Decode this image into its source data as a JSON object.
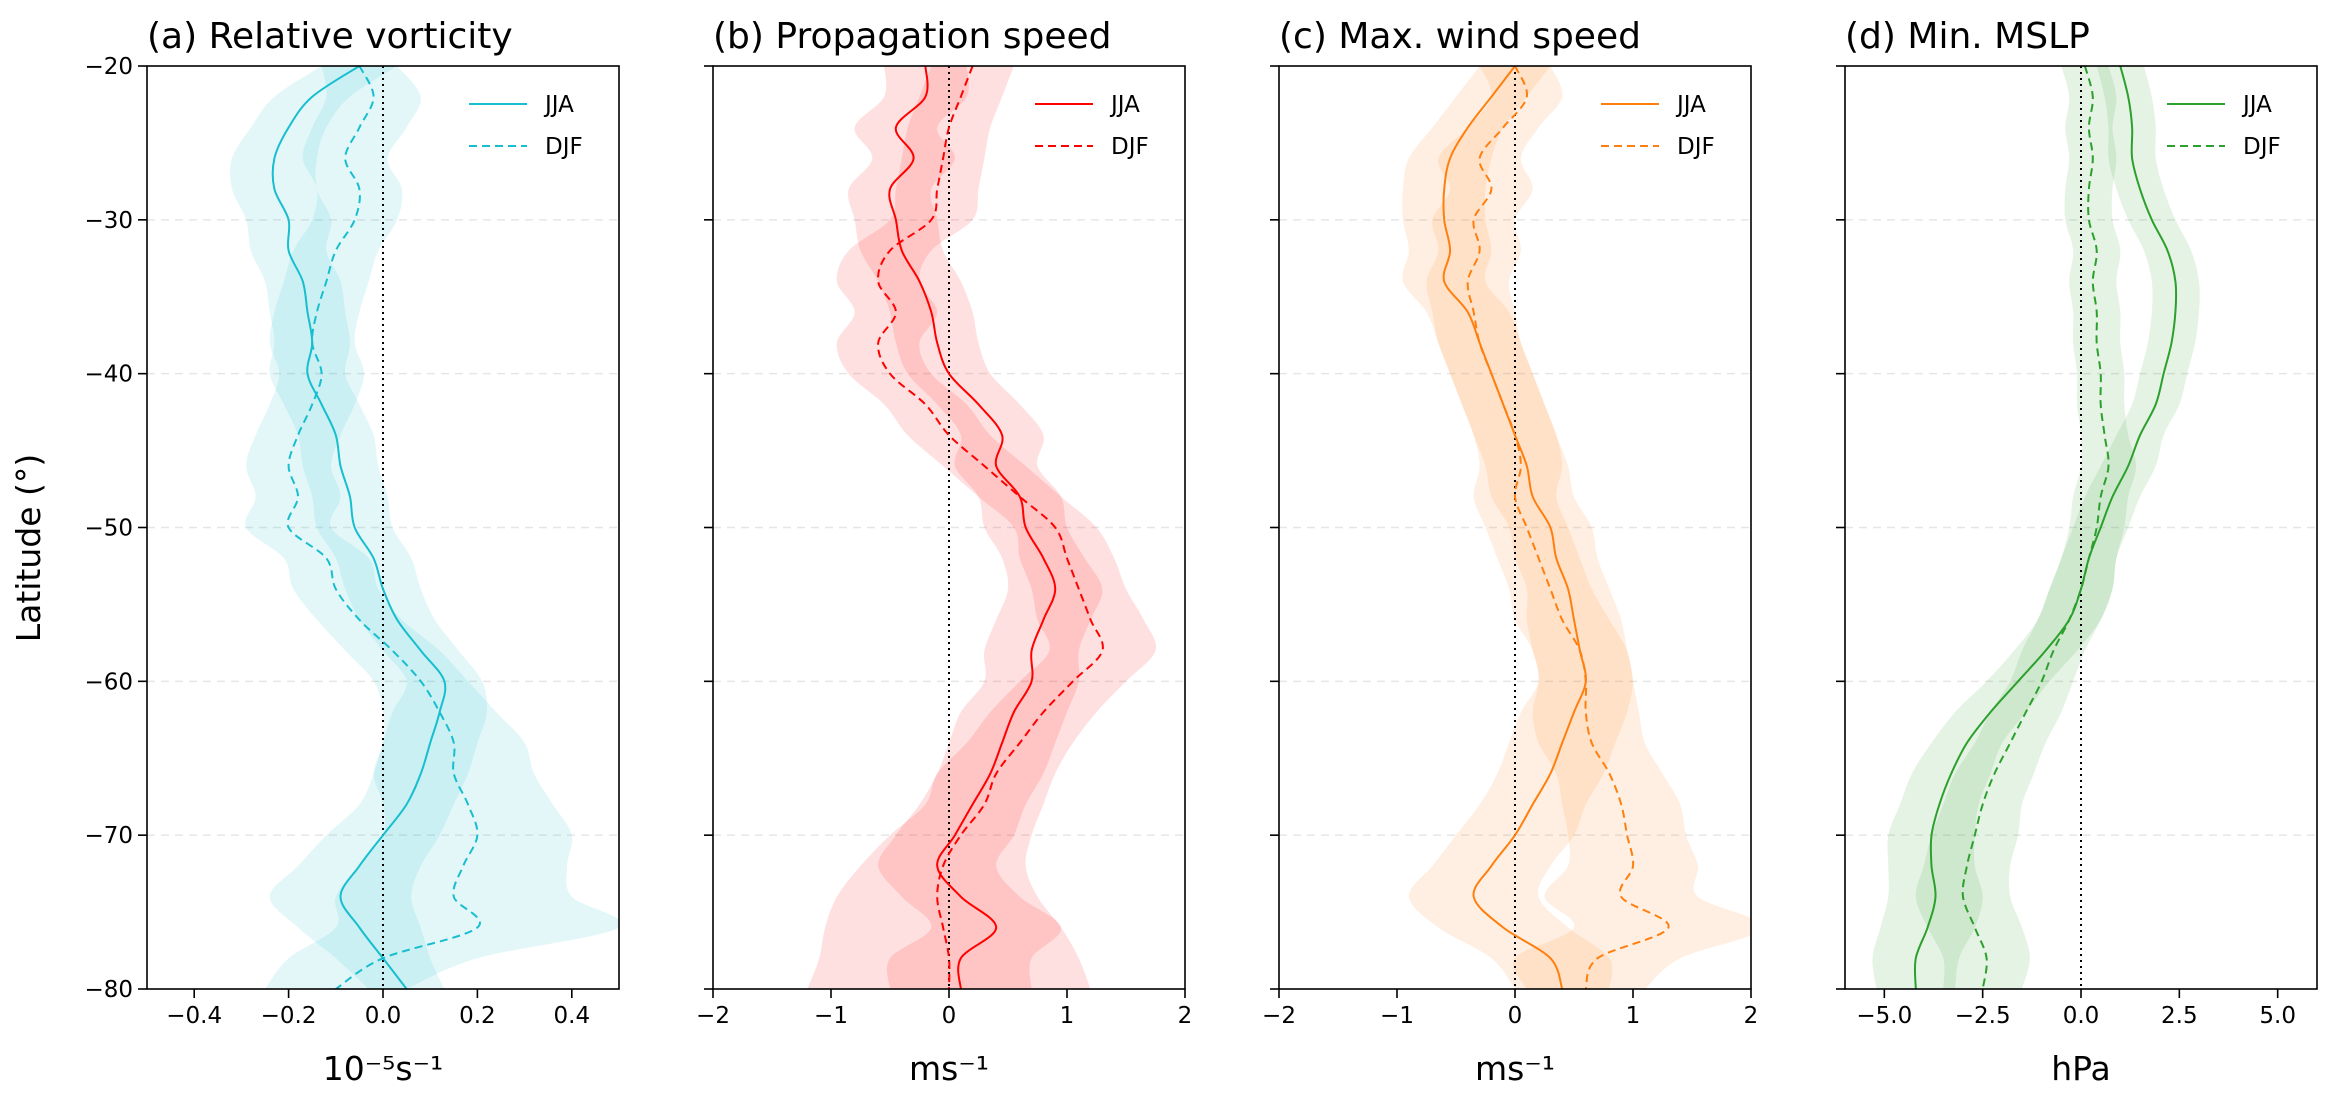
{
  "figure": {
    "ylabel": "Latitude (°)"
  },
  "chart_data": [
    {
      "type": "line",
      "title": "(a) Relative vorticity",
      "xlabel": "10⁻⁵s⁻¹",
      "ylabel": "Latitude (°)",
      "xlim": [
        -0.5,
        0.5
      ],
      "ylim": [
        -80,
        -20
      ],
      "xticks": [
        -0.4,
        -0.2,
        0.0,
        0.2,
        0.4
      ],
      "xtick_labels": [
        "−0.4",
        "−0.2",
        "0.0",
        "0.2",
        "0.4"
      ],
      "yticks": [
        -80,
        -70,
        -60,
        -50,
        -40,
        -30,
        -20
      ],
      "ytick_labels": [
        "−80",
        "−70",
        "−60",
        "−50",
        "−40",
        "−30",
        "−20"
      ],
      "color": "#17becf",
      "grid": "horizontal dashed",
      "zero_line": "vertical dotted at x=0",
      "legend": "top-right",
      "series": [
        {
          "name": "JJA",
          "style": "solid",
          "lat": [
            -20,
            -22,
            -24,
            -26,
            -28,
            -30,
            -32,
            -34,
            -36,
            -38,
            -40,
            -42,
            -44,
            -46,
            -48,
            -50,
            -52,
            -54,
            -56,
            -58,
            -60,
            -62,
            -64,
            -66,
            -68,
            -70,
            -72,
            -74,
            -76,
            -78,
            -80
          ],
          "x": [
            -0.05,
            -0.15,
            -0.2,
            -0.23,
            -0.23,
            -0.2,
            -0.2,
            -0.17,
            -0.16,
            -0.15,
            -0.16,
            -0.13,
            -0.1,
            -0.09,
            -0.07,
            -0.06,
            -0.02,
            0.0,
            0.03,
            0.08,
            0.13,
            0.12,
            0.1,
            0.08,
            0.05,
            0.0,
            -0.05,
            -0.09,
            -0.05,
            0.0,
            0.05
          ],
          "band": [
            0.08,
            0.08,
            0.08,
            0.09,
            0.09,
            0.09,
            0.08,
            0.08,
            0.08,
            0.08,
            0.08,
            0.08,
            0.08,
            0.08,
            0.08,
            0.08,
            0.08,
            0.08,
            0.08,
            0.08,
            0.08,
            0.1,
            0.1,
            0.1,
            0.1,
            0.12,
            0.13,
            0.15,
            0.13,
            0.1,
            0.08
          ]
        },
        {
          "name": "DJF",
          "style": "dashed",
          "lat": [
            -20,
            -22,
            -24,
            -26,
            -28,
            -30,
            -32,
            -34,
            -36,
            -38,
            -40,
            -42,
            -44,
            -46,
            -48,
            -50,
            -52,
            -54,
            -56,
            -58,
            -60,
            -62,
            -64,
            -66,
            -68,
            -70,
            -72,
            -74,
            -76,
            -78,
            -80
          ],
          "x": [
            -0.05,
            -0.02,
            -0.05,
            -0.08,
            -0.05,
            -0.06,
            -0.1,
            -0.12,
            -0.14,
            -0.15,
            -0.13,
            -0.15,
            -0.18,
            -0.2,
            -0.18,
            -0.2,
            -0.12,
            -0.1,
            -0.05,
            0.02,
            0.08,
            0.12,
            0.15,
            0.15,
            0.18,
            0.2,
            0.17,
            0.15,
            0.2,
            0.0,
            -0.1
          ],
          "band": [
            0.08,
            0.1,
            0.1,
            0.09,
            0.09,
            0.09,
            0.09,
            0.09,
            0.09,
            0.09,
            0.09,
            0.09,
            0.09,
            0.09,
            0.09,
            0.09,
            0.09,
            0.09,
            0.09,
            0.1,
            0.1,
            0.12,
            0.15,
            0.17,
            0.18,
            0.2,
            0.22,
            0.25,
            0.3,
            0.2,
            0.15
          ]
        }
      ]
    },
    {
      "type": "line",
      "title": "(b) Propagation speed",
      "xlabel": "ms⁻¹",
      "xlim": [
        -2,
        2
      ],
      "ylim": [
        -80,
        -20
      ],
      "xticks": [
        -2,
        -1,
        0,
        1,
        2
      ],
      "xtick_labels": [
        "−2",
        "−1",
        "0",
        "1",
        "2"
      ],
      "yticks": [
        -80,
        -70,
        -60,
        -50,
        -40,
        -30,
        -20
      ],
      "color": "#ff0000",
      "grid": "horizontal dashed",
      "zero_line": "vertical dotted at x=0",
      "legend": "top-right",
      "series": [
        {
          "name": "JJA",
          "style": "solid",
          "lat": [
            -20,
            -22,
            -24,
            -26,
            -28,
            -30,
            -32,
            -34,
            -36,
            -38,
            -40,
            -42,
            -44,
            -46,
            -48,
            -50,
            -52,
            -54,
            -56,
            -58,
            -60,
            -62,
            -64,
            -66,
            -68,
            -70,
            -72,
            -74,
            -76,
            -78,
            -80
          ],
          "x": [
            -0.2,
            -0.2,
            -0.45,
            -0.3,
            -0.5,
            -0.45,
            -0.4,
            -0.25,
            -0.15,
            -0.1,
            0.0,
            0.25,
            0.45,
            0.4,
            0.6,
            0.65,
            0.8,
            0.9,
            0.8,
            0.7,
            0.7,
            0.55,
            0.45,
            0.35,
            0.2,
            0.05,
            -0.1,
            0.1,
            0.4,
            0.1,
            0.1
          ],
          "band": [
            0.35,
            0.35,
            0.35,
            0.35,
            0.35,
            0.35,
            0.35,
            0.35,
            0.35,
            0.35,
            0.35,
            0.35,
            0.35,
            0.35,
            0.35,
            0.35,
            0.35,
            0.4,
            0.4,
            0.4,
            0.4,
            0.45,
            0.45,
            0.45,
            0.45,
            0.5,
            0.5,
            0.5,
            0.55,
            0.6,
            0.6
          ]
        },
        {
          "name": "DJF",
          "style": "dashed",
          "lat": [
            -20,
            -22,
            -24,
            -26,
            -28,
            -30,
            -32,
            -34,
            -36,
            -38,
            -40,
            -42,
            -44,
            -46,
            -48,
            -50,
            -52,
            -54,
            -56,
            -58,
            -60,
            -62,
            -64,
            -66,
            -68,
            -70,
            -72,
            -74,
            -76,
            -78,
            -80
          ],
          "x": [
            0.2,
            0.1,
            0.0,
            -0.05,
            -0.1,
            -0.15,
            -0.5,
            -0.6,
            -0.45,
            -0.6,
            -0.5,
            -0.2,
            0.0,
            0.3,
            0.6,
            0.9,
            1.0,
            1.1,
            1.2,
            1.3,
            1.05,
            0.8,
            0.6,
            0.4,
            0.3,
            0.1,
            -0.05,
            -0.1,
            -0.05,
            0.0,
            0.0
          ],
          "band": [
            0.35,
            0.35,
            0.35,
            0.35,
            0.35,
            0.35,
            0.35,
            0.35,
            0.35,
            0.35,
            0.35,
            0.35,
            0.35,
            0.35,
            0.35,
            0.35,
            0.4,
            0.4,
            0.45,
            0.45,
            0.45,
            0.45,
            0.45,
            0.5,
            0.5,
            0.6,
            0.7,
            0.85,
            1.0,
            1.1,
            1.2
          ]
        }
      ]
    },
    {
      "type": "line",
      "title": "(c) Max. wind speed",
      "xlabel": "ms⁻¹",
      "xlim": [
        -2,
        2
      ],
      "ylim": [
        -80,
        -20
      ],
      "xticks": [
        -2,
        -1,
        0,
        1,
        2
      ],
      "xtick_labels": [
        "−2",
        "−1",
        "0",
        "1",
        "2"
      ],
      "yticks": [
        -80,
        -70,
        -60,
        -50,
        -40,
        -30,
        -20
      ],
      "color": "#ff7f0e",
      "grid": "horizontal dashed",
      "zero_line": "vertical dotted at x=0",
      "legend": "top-right",
      "series": [
        {
          "name": "JJA",
          "style": "solid",
          "lat": [
            -20,
            -22,
            -24,
            -26,
            -28,
            -30,
            -32,
            -34,
            -36,
            -38,
            -40,
            -42,
            -44,
            -46,
            -48,
            -50,
            -52,
            -54,
            -56,
            -58,
            -60,
            -62,
            -64,
            -66,
            -68,
            -70,
            -72,
            -74,
            -76,
            -78,
            -80
          ],
          "x": [
            0.0,
            -0.2,
            -0.4,
            -0.55,
            -0.6,
            -0.6,
            -0.55,
            -0.6,
            -0.4,
            -0.3,
            -0.2,
            -0.1,
            0.0,
            0.1,
            0.15,
            0.3,
            0.35,
            0.45,
            0.5,
            0.55,
            0.6,
            0.5,
            0.4,
            0.3,
            0.15,
            0.0,
            -0.2,
            -0.35,
            -0.1,
            0.3,
            0.4
          ],
          "band": [
            0.3,
            0.3,
            0.3,
            0.35,
            0.35,
            0.35,
            0.35,
            0.35,
            0.35,
            0.35,
            0.35,
            0.35,
            0.35,
            0.35,
            0.35,
            0.35,
            0.35,
            0.35,
            0.4,
            0.4,
            0.4,
            0.45,
            0.45,
            0.45,
            0.45,
            0.5,
            0.5,
            0.55,
            0.55,
            0.5,
            0.4
          ]
        },
        {
          "name": "DJF",
          "style": "dashed",
          "lat": [
            -20,
            -22,
            -24,
            -26,
            -28,
            -30,
            -32,
            -34,
            -36,
            -38,
            -40,
            -42,
            -44,
            -46,
            -48,
            -50,
            -52,
            -54,
            -56,
            -58,
            -60,
            -62,
            -64,
            -66,
            -68,
            -70,
            -72,
            -74,
            -76,
            -78,
            -80
          ],
          "x": [
            0.0,
            0.1,
            -0.1,
            -0.3,
            -0.2,
            -0.35,
            -0.3,
            -0.4,
            -0.35,
            -0.3,
            -0.2,
            -0.1,
            0.0,
            0.05,
            0.0,
            0.1,
            0.2,
            0.3,
            0.4,
            0.55,
            0.6,
            0.6,
            0.65,
            0.8,
            0.9,
            0.95,
            1.0,
            0.9,
            1.3,
            0.7,
            0.6
          ],
          "band": [
            0.3,
            0.3,
            0.3,
            0.35,
            0.35,
            0.35,
            0.35,
            0.35,
            0.35,
            0.35,
            0.35,
            0.35,
            0.35,
            0.35,
            0.35,
            0.35,
            0.35,
            0.35,
            0.4,
            0.4,
            0.4,
            0.45,
            0.45,
            0.45,
            0.5,
            0.5,
            0.55,
            0.65,
            0.8,
            0.7,
            0.5
          ]
        }
      ]
    },
    {
      "type": "line",
      "title": "(d) Min. MSLP",
      "xlabel": "hPa",
      "xlim": [
        -6,
        6
      ],
      "ylim": [
        -80,
        -20
      ],
      "xticks": [
        -5,
        -2.5,
        0,
        2.5,
        5
      ],
      "xtick_labels": [
        "−5.0",
        "−2.5",
        "0.0",
        "2.5",
        "5.0"
      ],
      "yticks": [
        -80,
        -70,
        -60,
        -50,
        -40,
        -30,
        -20
      ],
      "color": "#2ca02c",
      "grid": "horizontal dashed",
      "zero_line": "vertical dotted at x=0",
      "legend": "top-right",
      "series": [
        {
          "name": "JJA",
          "style": "solid",
          "lat": [
            -20,
            -22,
            -24,
            -26,
            -28,
            -30,
            -32,
            -34,
            -36,
            -38,
            -40,
            -42,
            -44,
            -46,
            -48,
            -50,
            -52,
            -54,
            -56,
            -58,
            -60,
            -62,
            -64,
            -66,
            -68,
            -70,
            -72,
            -74,
            -76,
            -78,
            -80
          ],
          "x": [
            1.0,
            1.2,
            1.3,
            1.3,
            1.5,
            1.8,
            2.2,
            2.4,
            2.4,
            2.3,
            2.1,
            1.9,
            1.5,
            1.2,
            0.8,
            0.5,
            0.2,
            0.0,
            -0.3,
            -0.9,
            -1.6,
            -2.3,
            -2.9,
            -3.3,
            -3.6,
            -3.8,
            -3.8,
            -3.7,
            -3.9,
            -4.2,
            -4.2
          ],
          "band": [
            0.6,
            0.6,
            0.6,
            0.6,
            0.6,
            0.6,
            0.6,
            0.6,
            0.6,
            0.6,
            0.6,
            0.6,
            0.6,
            0.7,
            0.7,
            0.7,
            0.7,
            0.8,
            0.8,
            0.8,
            0.8,
            0.9,
            0.9,
            1.0,
            1.0,
            1.1,
            1.1,
            1.2,
            1.2,
            1.1,
            1.0
          ]
        },
        {
          "name": "DJF",
          "style": "dashed",
          "lat": [
            -20,
            -22,
            -24,
            -26,
            -28,
            -30,
            -32,
            -34,
            -36,
            -38,
            -40,
            -42,
            -44,
            -46,
            -48,
            -50,
            -52,
            -54,
            -56,
            -58,
            -60,
            -62,
            -64,
            -66,
            -68,
            -70,
            -72,
            -74,
            -76,
            -78,
            -80
          ],
          "x": [
            0.1,
            0.3,
            0.2,
            0.3,
            0.2,
            0.2,
            0.4,
            0.3,
            0.4,
            0.4,
            0.5,
            0.5,
            0.6,
            0.7,
            0.5,
            0.4,
            0.2,
            0.0,
            -0.3,
            -0.7,
            -1.0,
            -1.4,
            -1.8,
            -2.2,
            -2.5,
            -2.7,
            -2.9,
            -3.0,
            -2.7,
            -2.4,
            -2.5
          ],
          "band": [
            0.6,
            0.6,
            0.6,
            0.6,
            0.6,
            0.6,
            0.6,
            0.6,
            0.6,
            0.6,
            0.6,
            0.6,
            0.6,
            0.7,
            0.7,
            0.7,
            0.7,
            0.8,
            0.8,
            0.8,
            0.8,
            0.9,
            0.9,
            1.0,
            1.0,
            1.1,
            1.1,
            1.2,
            1.2,
            1.1,
            1.0
          ]
        }
      ]
    }
  ]
}
